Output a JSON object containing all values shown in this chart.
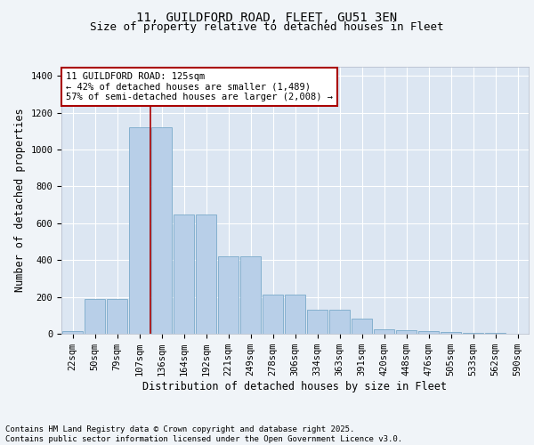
{
  "title_line1": "11, GUILDFORD ROAD, FLEET, GU51 3EN",
  "title_line2": "Size of property relative to detached houses in Fleet",
  "xlabel": "Distribution of detached houses by size in Fleet",
  "ylabel": "Number of detached properties",
  "categories": [
    "22sqm",
    "50sqm",
    "79sqm",
    "107sqm",
    "136sqm",
    "164sqm",
    "192sqm",
    "221sqm",
    "249sqm",
    "278sqm",
    "306sqm",
    "334sqm",
    "363sqm",
    "391sqm",
    "420sqm",
    "448sqm",
    "476sqm",
    "505sqm",
    "533sqm",
    "562sqm",
    "590sqm"
  ],
  "values": [
    15,
    190,
    190,
    1120,
    1120,
    650,
    650,
    420,
    420,
    215,
    215,
    130,
    130,
    80,
    25,
    20,
    15,
    8,
    5,
    3,
    2
  ],
  "bar_color": "#b8cfe8",
  "bar_edge_color": "#7aaaca",
  "background_color": "#dce6f2",
  "grid_color": "#ffffff",
  "vline_x": 3.5,
  "vline_color": "#aa0000",
  "annotation_text": "11 GUILDFORD ROAD: 125sqm\n← 42% of detached houses are smaller (1,489)\n57% of semi-detached houses are larger (2,008) →",
  "annotation_box_facecolor": "#ffffff",
  "annotation_box_edgecolor": "#aa0000",
  "ylim": [
    0,
    1450
  ],
  "yticks": [
    0,
    200,
    400,
    600,
    800,
    1000,
    1200,
    1400
  ],
  "footer_line1": "Contains HM Land Registry data © Crown copyright and database right 2025.",
  "footer_line2": "Contains public sector information licensed under the Open Government Licence v3.0.",
  "title_fontsize": 10,
  "subtitle_fontsize": 9,
  "axis_label_fontsize": 8.5,
  "tick_fontsize": 7.5,
  "annotation_fontsize": 7.5,
  "footer_fontsize": 6.5,
  "fig_facecolor": "#f0f4f8"
}
